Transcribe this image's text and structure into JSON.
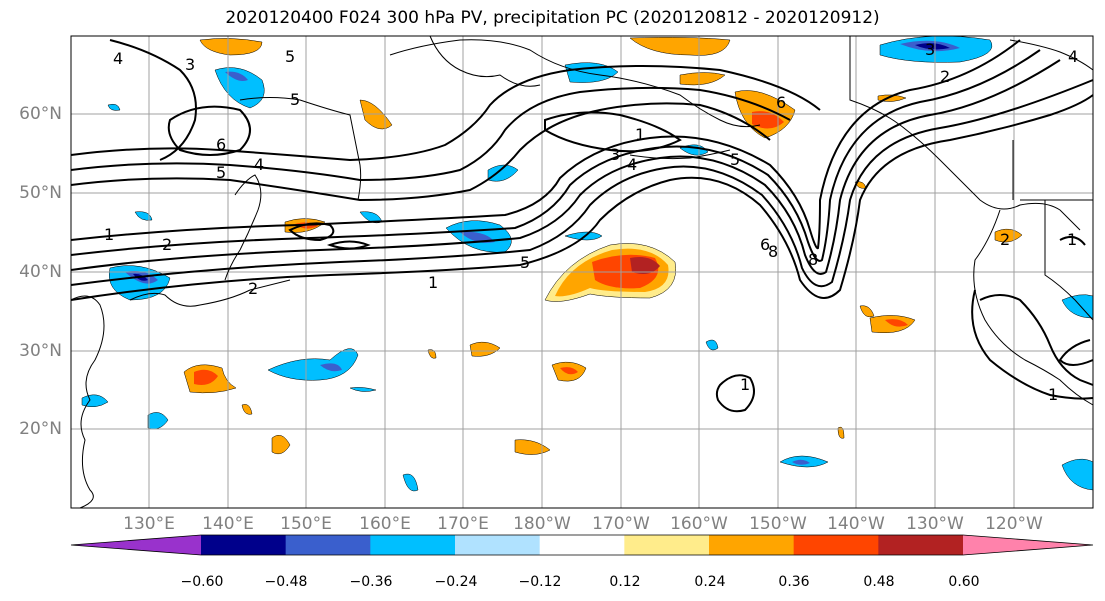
{
  "title": "2020120400 F024 300 hPa PV, precipitation PC (2020120812 - 2020120912)",
  "latitude_labels": [
    "60°N",
    "50°N",
    "40°N",
    "30°N",
    "20°N"
  ],
  "longitude_labels": [
    "130°E",
    "140°E",
    "150°E",
    "160°E",
    "170°E",
    "180°W",
    "170°W",
    "160°W",
    "150°W",
    "140°W",
    "130°W",
    "120°W"
  ],
  "colorbar": {
    "tick_labels": [
      "−0.60",
      "−0.48",
      "−0.36",
      "−0.24",
      "−0.12",
      "0.12",
      "0.24",
      "0.36",
      "0.48",
      "0.60"
    ],
    "colors": [
      "#9932cc",
      "#00008b",
      "#3a5fcd",
      "#00bfff",
      "#b0e2ff",
      "#ffffff",
      "#ffec8b",
      "#ffa500",
      "#ff4500",
      "#b22222",
      "#ff82ab"
    ]
  },
  "pv_contour_labels": [
    "4",
    "3",
    "5",
    "5",
    "6",
    "5",
    "4",
    "1",
    "2",
    "1",
    "5",
    "1",
    "3",
    "4",
    "6",
    "5",
    "6",
    "8",
    "8",
    "2",
    "3",
    "2",
    "4",
    "1",
    "1",
    "2",
    "1"
  ]
}
